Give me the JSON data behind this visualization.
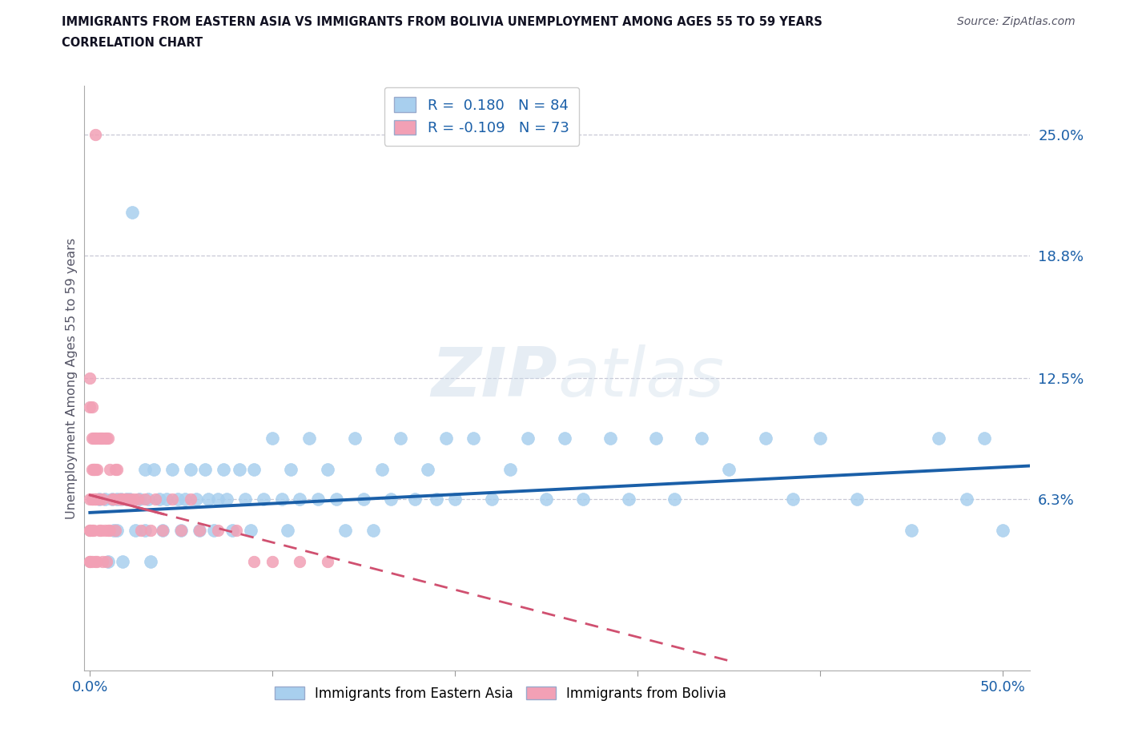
{
  "title_line1": "IMMIGRANTS FROM EASTERN ASIA VS IMMIGRANTS FROM BOLIVIA UNEMPLOYMENT AMONG AGES 55 TO 59 YEARS",
  "title_line2": "CORRELATION CHART",
  "source_text": "Source: ZipAtlas.com",
  "ylabel": "Unemployment Among Ages 55 to 59 years",
  "legend_label1": "Immigrants from Eastern Asia",
  "legend_label2": "Immigrants from Bolivia",
  "r1": 0.18,
  "n1": 84,
  "r2": -0.109,
  "n2": 73,
  "xlim": [
    -0.003,
    0.515
  ],
  "ylim": [
    -0.025,
    0.275
  ],
  "ytick_right_labels": [
    "25.0%",
    "18.8%",
    "12.5%",
    "6.3%"
  ],
  "ytick_right_values": [
    0.25,
    0.188,
    0.125,
    0.063
  ],
  "color_blue": "#A8CFEE",
  "color_blue_line": "#1A5FA8",
  "color_pink": "#F2A0B5",
  "color_pink_line": "#D05070",
  "background_color": "#FFFFFF",
  "watermark_text": "ZIPatlas",
  "blue_x": [
    0.005,
    0.008,
    0.01,
    0.012,
    0.013,
    0.015,
    0.015,
    0.017,
    0.018,
    0.02,
    0.022,
    0.025,
    0.027,
    0.03,
    0.03,
    0.032,
    0.033,
    0.035,
    0.038,
    0.04,
    0.042,
    0.045,
    0.048,
    0.05,
    0.052,
    0.055,
    0.058,
    0.06,
    0.063,
    0.065,
    0.068,
    0.07,
    0.073,
    0.075,
    0.078,
    0.082,
    0.085,
    0.088,
    0.09,
    0.095,
    0.1,
    0.105,
    0.108,
    0.11,
    0.115,
    0.12,
    0.125,
    0.13,
    0.135,
    0.14,
    0.145,
    0.15,
    0.155,
    0.16,
    0.165,
    0.17,
    0.178,
    0.185,
    0.19,
    0.195,
    0.2,
    0.21,
    0.22,
    0.23,
    0.24,
    0.25,
    0.26,
    0.27,
    0.285,
    0.295,
    0.31,
    0.32,
    0.335,
    0.35,
    0.37,
    0.385,
    0.4,
    0.42,
    0.45,
    0.465,
    0.48,
    0.49,
    0.5,
    0.023
  ],
  "blue_y": [
    0.063,
    0.063,
    0.031,
    0.063,
    0.047,
    0.063,
    0.047,
    0.063,
    0.031,
    0.063,
    0.063,
    0.047,
    0.063,
    0.047,
    0.078,
    0.063,
    0.031,
    0.078,
    0.063,
    0.047,
    0.063,
    0.078,
    0.063,
    0.047,
    0.063,
    0.078,
    0.063,
    0.047,
    0.078,
    0.063,
    0.047,
    0.063,
    0.078,
    0.063,
    0.047,
    0.078,
    0.063,
    0.047,
    0.078,
    0.063,
    0.094,
    0.063,
    0.047,
    0.078,
    0.063,
    0.094,
    0.063,
    0.078,
    0.063,
    0.047,
    0.094,
    0.063,
    0.047,
    0.078,
    0.063,
    0.094,
    0.063,
    0.078,
    0.063,
    0.094,
    0.063,
    0.094,
    0.063,
    0.078,
    0.094,
    0.063,
    0.094,
    0.063,
    0.094,
    0.063,
    0.094,
    0.063,
    0.094,
    0.078,
    0.094,
    0.063,
    0.094,
    0.063,
    0.047,
    0.094,
    0.063,
    0.094,
    0.047,
    0.21
  ],
  "pink_x": [
    0.0,
    0.0,
    0.0,
    0.0,
    0.0,
    0.001,
    0.001,
    0.001,
    0.001,
    0.001,
    0.002,
    0.002,
    0.002,
    0.003,
    0.003,
    0.003,
    0.003,
    0.004,
    0.004,
    0.004,
    0.005,
    0.005,
    0.005,
    0.006,
    0.006,
    0.007,
    0.007,
    0.007,
    0.008,
    0.008,
    0.009,
    0.009,
    0.01,
    0.01,
    0.011,
    0.011,
    0.012,
    0.013,
    0.014,
    0.014,
    0.015,
    0.016,
    0.017,
    0.018,
    0.019,
    0.02,
    0.022,
    0.024,
    0.026,
    0.028,
    0.03,
    0.033,
    0.036,
    0.04,
    0.045,
    0.05,
    0.055,
    0.06,
    0.07,
    0.08,
    0.09,
    0.1,
    0.115,
    0.13,
    0.0,
    0.001,
    0.002,
    0.003,
    0.004,
    0.0,
    0.001,
    0.002,
    0.003
  ],
  "pink_y": [
    0.063,
    0.047,
    0.047,
    0.031,
    0.031,
    0.078,
    0.063,
    0.063,
    0.047,
    0.031,
    0.078,
    0.063,
    0.047,
    0.078,
    0.063,
    0.063,
    0.031,
    0.078,
    0.063,
    0.031,
    0.094,
    0.063,
    0.047,
    0.094,
    0.047,
    0.094,
    0.063,
    0.031,
    0.094,
    0.047,
    0.094,
    0.031,
    0.094,
    0.047,
    0.078,
    0.047,
    0.063,
    0.063,
    0.078,
    0.047,
    0.078,
    0.063,
    0.063,
    0.063,
    0.063,
    0.063,
    0.063,
    0.063,
    0.063,
    0.047,
    0.063,
    0.047,
    0.063,
    0.047,
    0.063,
    0.047,
    0.063,
    0.047,
    0.047,
    0.047,
    0.031,
    0.031,
    0.031,
    0.031,
    0.125,
    0.094,
    0.094,
    0.094,
    0.094,
    0.11,
    0.11,
    0.078,
    0.25
  ],
  "blue_trendline_x": [
    0.0,
    0.515
  ],
  "blue_trendline_y": [
    0.056,
    0.08
  ],
  "pink_trendline_x": [
    0.0,
    0.35
  ],
  "pink_trendline_y": [
    0.065,
    -0.02
  ]
}
